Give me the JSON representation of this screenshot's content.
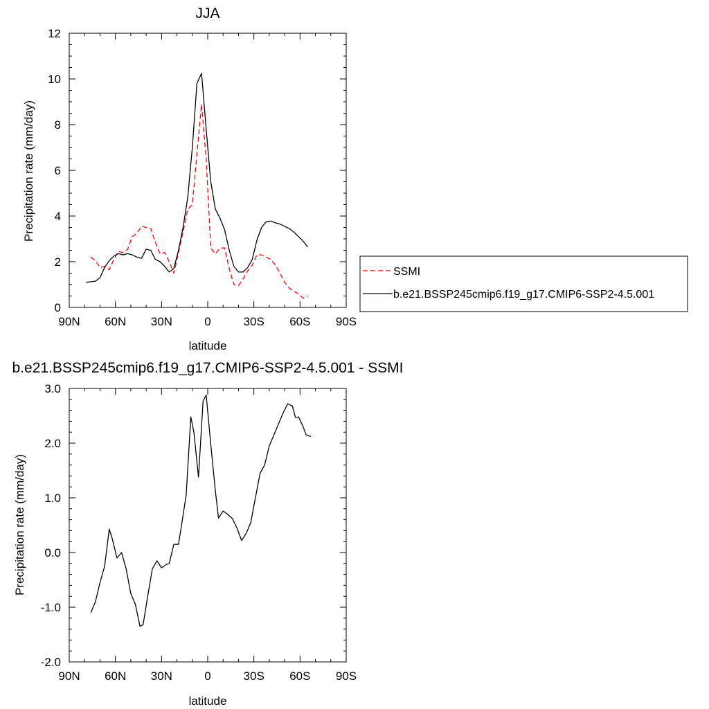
{
  "chart_data": [
    {
      "type": "line",
      "title": "JJA",
      "xlabel": "latitude",
      "ylabel": "Precipitation rate (mm/day)",
      "xlim": [
        90,
        -90
      ],
      "ylim": [
        0,
        12
      ],
      "x_ticks": [
        90,
        60,
        30,
        0,
        -30,
        -60,
        -90
      ],
      "x_tick_labels": [
        "90N",
        "60N",
        "30N",
        "0",
        "30S",
        "60S",
        "90S"
      ],
      "y_ticks": [
        0,
        2,
        4,
        6,
        8,
        10,
        12
      ],
      "y_tick_labels": [
        "0",
        "2",
        "4",
        "6",
        "8",
        "10",
        "12"
      ],
      "legend_position": "outside-right",
      "series": [
        {
          "name": "SSMI",
          "color": "#ff0000",
          "dash": "dashed",
          "x": [
            76,
            73,
            70,
            67,
            64,
            61,
            58,
            55,
            52,
            49,
            46,
            43,
            40,
            37,
            34,
            31,
            28,
            25,
            22,
            19,
            16,
            13,
            10,
            7,
            4,
            1,
            -2,
            -5,
            -8,
            -11,
            -14,
            -17,
            -20,
            -23,
            -26,
            -29,
            -32,
            -35,
            -38,
            -41,
            -44,
            -47,
            -50,
            -53,
            -56,
            -59,
            -62,
            -65
          ],
          "y": [
            2.2,
            2.05,
            1.75,
            1.8,
            1.65,
            2.1,
            2.45,
            2.4,
            2.55,
            3.1,
            3.25,
            3.55,
            3.5,
            3.45,
            2.85,
            2.35,
            2.4,
            2.0,
            1.5,
            2.4,
            3.3,
            4.3,
            4.5,
            6.7,
            8.9,
            6.5,
            2.6,
            2.35,
            2.6,
            2.6,
            1.7,
            1.0,
            0.95,
            1.25,
            1.6,
            1.85,
            2.3,
            2.3,
            2.2,
            2.1,
            1.85,
            1.5,
            1.1,
            0.85,
            0.7,
            0.6,
            0.4,
            0.5
          ]
        },
        {
          "name": "b.e21.BSSP245cmip6.f19_g17.CMIP6-SSP2-4.5.001",
          "color": "#000000",
          "dash": "solid",
          "x": [
            79,
            76,
            73,
            70,
            67,
            64,
            61,
            58,
            55,
            52,
            49,
            46,
            43,
            40,
            37,
            34,
            31,
            28,
            25,
            22,
            19,
            16,
            13,
            10,
            7,
            4,
            1,
            -2,
            -5,
            -8,
            -11,
            -14,
            -17,
            -20,
            -23,
            -26,
            -29,
            -32,
            -35,
            -38,
            -41,
            -44,
            -47,
            -50,
            -53,
            -56,
            -59,
            -62,
            -65
          ],
          "y": [
            1.1,
            1.12,
            1.15,
            1.3,
            1.75,
            2.05,
            2.25,
            2.35,
            2.3,
            2.35,
            2.3,
            2.2,
            2.15,
            2.55,
            2.5,
            2.1,
            2.0,
            1.8,
            1.55,
            1.7,
            2.5,
            3.5,
            4.8,
            7.0,
            9.8,
            10.25,
            7.8,
            5.5,
            4.3,
            3.9,
            3.4,
            2.5,
            1.8,
            1.55,
            1.55,
            1.75,
            2.1,
            2.95,
            3.5,
            3.75,
            3.78,
            3.7,
            3.65,
            3.55,
            3.45,
            3.3,
            3.1,
            2.9,
            2.65
          ]
        }
      ]
    },
    {
      "type": "line",
      "title": "b.e21.BSSP245cmip6.f19_g17.CMIP6-SSP2-4.5.001 - SSMI",
      "xlabel": "latitude",
      "ylabel": "Precipitation rate (mm/day)",
      "xlim": [
        90,
        -90
      ],
      "ylim": [
        -2,
        3
      ],
      "x_ticks": [
        90,
        60,
        30,
        0,
        -30,
        -60,
        -90
      ],
      "x_tick_labels": [
        "90N",
        "60N",
        "30N",
        "0",
        "30S",
        "60S",
        "90S"
      ],
      "y_ticks": [
        -2,
        -1,
        0,
        1,
        2,
        3
      ],
      "y_tick_labels": [
        "-2.0",
        "-1.0",
        "0.0",
        "1.0",
        "2.0",
        "3.0"
      ],
      "series": [
        {
          "color": "#000000",
          "dash": "solid",
          "x": [
            76,
            73,
            70,
            67,
            64,
            62,
            59,
            56,
            53,
            50,
            47,
            44,
            42,
            39,
            36,
            33,
            30,
            27,
            25,
            22,
            19,
            17,
            14,
            11,
            9,
            6,
            3,
            1,
            -2,
            -5,
            -7,
            -10,
            -12,
            -16,
            -19,
            -22,
            -25,
            -28,
            -31,
            -34,
            -37,
            -40,
            -43,
            -46,
            -49,
            -52,
            -55,
            -57,
            -59,
            -62,
            -64,
            -67
          ],
          "y": [
            -1.1,
            -0.9,
            -0.55,
            -0.25,
            0.43,
            0.25,
            -0.1,
            0.0,
            -0.3,
            -0.75,
            -0.95,
            -1.35,
            -1.32,
            -0.8,
            -0.3,
            -0.15,
            -0.28,
            -0.22,
            -0.2,
            0.15,
            0.15,
            0.5,
            1.05,
            2.48,
            2.2,
            1.38,
            2.77,
            2.88,
            1.98,
            1.12,
            0.63,
            0.76,
            0.72,
            0.62,
            0.45,
            0.22,
            0.35,
            0.55,
            1.0,
            1.45,
            1.6,
            1.95,
            2.15,
            2.35,
            2.55,
            2.72,
            2.68,
            2.47,
            2.48,
            2.3,
            2.15,
            2.12
          ]
        }
      ]
    }
  ]
}
